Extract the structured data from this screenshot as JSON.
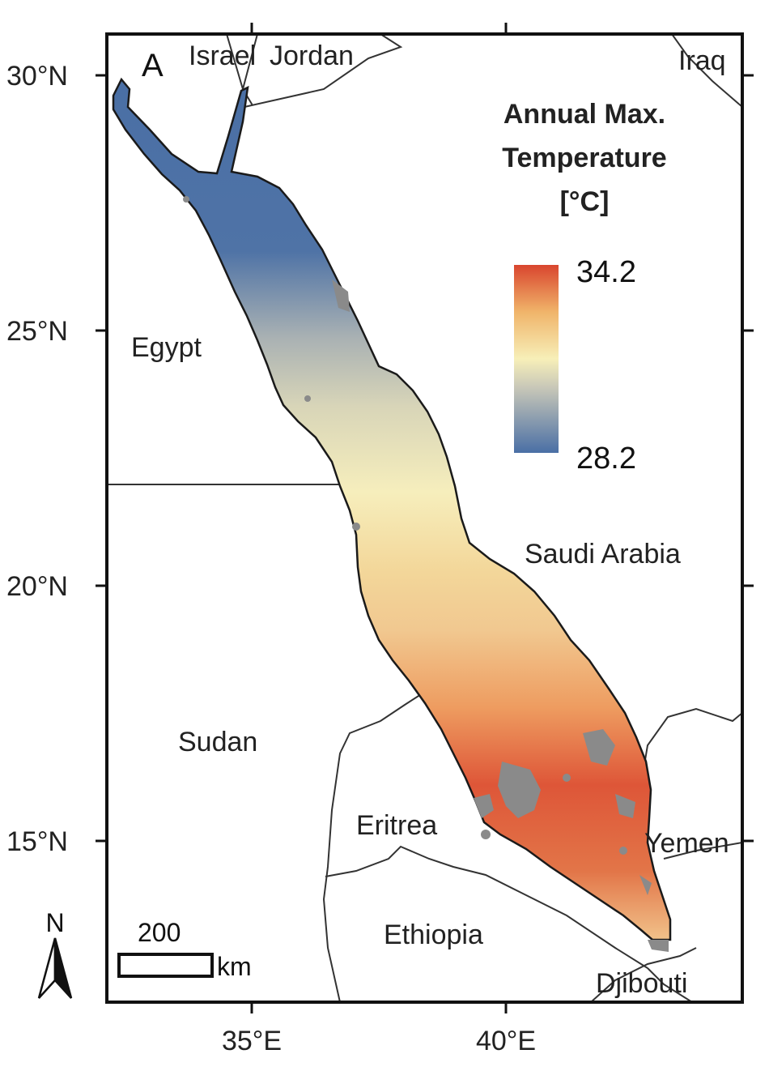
{
  "panel_label": "A",
  "legend": {
    "title_lines": [
      "Annual Max.",
      "Temperature",
      "[°C]"
    ],
    "max_label": "34.2",
    "min_label": "28.2",
    "max_value": 34.2,
    "min_value": 28.2,
    "colors": {
      "low": "#4a6fa5",
      "mid_low": "#c9c8b8",
      "mid": "#f7efb8",
      "mid_high": "#f0b46a",
      "high": "#d9452e"
    }
  },
  "lat_ticks": [
    "30°N",
    "25°N",
    "20°N",
    "15°N"
  ],
  "lon_ticks": [
    "35°E",
    "40°E"
  ],
  "countries": {
    "israel": "Israel",
    "jordan": "Jordan",
    "iraq": "Iraq",
    "egypt": "Egypt",
    "saudi_arabia": "Saudi Arabia",
    "sudan": "Sudan",
    "eritrea": "Eritrea",
    "yemen": "Yemen",
    "ethiopia": "Ethiopia",
    "djibouti": "Djibouti"
  },
  "scale_bar": {
    "value_label": "200",
    "unit_label": "km"
  },
  "north_arrow": {
    "label": "N",
    "icon": "north-arrow-icon"
  },
  "colors": {
    "frame": "#111111",
    "border": "#333333",
    "reef": "#888888",
    "background": "#ffffff"
  }
}
